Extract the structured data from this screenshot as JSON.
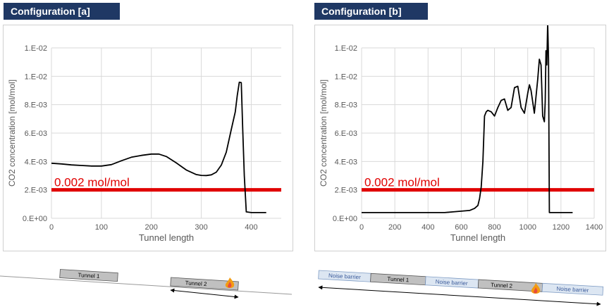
{
  "panels": [
    {
      "title": "Configuration [a]"
    },
    {
      "title": "Configuration [b]"
    }
  ],
  "colors": {
    "title_bg": "#1f3864",
    "threshold": "#e00000",
    "series": "#000000",
    "grid": "#d9d9d9",
    "tunnel_fill": "#c0c0c0",
    "noise_fill": "#dce6f2",
    "noise_text": "#3a5a9a"
  },
  "chart_data": [
    {
      "type": "line",
      "xlabel": "Tunnel length",
      "ylabel": "CO2 concentration [mol/mol]",
      "xlim": [
        0,
        460
      ],
      "xticks": [
        0,
        100,
        200,
        300,
        400
      ],
      "ylim": [
        0,
        0.012
      ],
      "yticks": [
        0,
        0.002,
        0.004,
        0.006,
        0.008,
        0.01,
        0.012
      ],
      "ytick_labels": [
        "0.E+00",
        "2.E-03",
        "4.E-03",
        "6.E-03",
        "8.E-03",
        "1.E-02",
        "1.E-02"
      ],
      "grid": true,
      "threshold": {
        "value": 0.002,
        "label": "0.002 mol/mol"
      },
      "series": [
        {
          "x": [
            0,
            20,
            40,
            60,
            80,
            100,
            120,
            140,
            160,
            180,
            200,
            215,
            230,
            250,
            270,
            290,
            300,
            310,
            320,
            330,
            340,
            350,
            360,
            368,
            372,
            376,
            380,
            383,
            386,
            390,
            400,
            410,
            420,
            430
          ],
          "y": [
            0.00388,
            0.00383,
            0.00376,
            0.00372,
            0.00368,
            0.00368,
            0.00378,
            0.00405,
            0.0043,
            0.00443,
            0.00452,
            0.00452,
            0.00435,
            0.0039,
            0.0034,
            0.00308,
            0.00302,
            0.00301,
            0.00306,
            0.00325,
            0.00375,
            0.00465,
            0.00625,
            0.0075,
            0.00865,
            0.00958,
            0.00955,
            0.0062,
            0.003,
            0.00045,
            0.0004,
            0.0004,
            0.0004,
            0.0004
          ]
        }
      ]
    },
    {
      "type": "line",
      "xlabel": "Tunnel length",
      "ylabel": "CO2 concentration [mol/mol]",
      "xlim": [
        0,
        1400
      ],
      "xticks": [
        0,
        200,
        400,
        600,
        800,
        1000,
        1200,
        1400
      ],
      "ylim": [
        0,
        0.012
      ],
      "yticks": [
        0,
        0.002,
        0.004,
        0.006,
        0.008,
        0.01,
        0.012
      ],
      "ytick_labels": [
        "0.E+00",
        "2.E-03",
        "4.E-03",
        "6.E-03",
        "8.E-03",
        "1.E-02",
        "1.E-02"
      ],
      "grid": true,
      "threshold": {
        "value": 0.002,
        "label": "0.002 mol/mol"
      },
      "series": [
        {
          "x": [
            0,
            100,
            200,
            300,
            400,
            500,
            550,
            600,
            650,
            680,
            700,
            710,
            720,
            730,
            740,
            750,
            760,
            780,
            800,
            820,
            840,
            860,
            880,
            900,
            920,
            940,
            960,
            980,
            1000,
            1010,
            1020,
            1040,
            1060,
            1070,
            1080,
            1090,
            1100,
            1105,
            1110,
            1115,
            1120,
            1125,
            1130,
            1140,
            1200,
            1270
          ],
          "y": [
            0.0004,
            0.0004,
            0.0004,
            0.0004,
            0.0004,
            0.0004,
            0.00045,
            0.0005,
            0.00055,
            0.0007,
            0.0009,
            0.0014,
            0.0022,
            0.004,
            0.0072,
            0.0075,
            0.0076,
            0.0075,
            0.0072,
            0.0078,
            0.0083,
            0.0084,
            0.0076,
            0.0078,
            0.0092,
            0.0093,
            0.0078,
            0.0074,
            0.0088,
            0.0094,
            0.009,
            0.0074,
            0.0098,
            0.0112,
            0.0108,
            0.0072,
            0.0068,
            0.0082,
            0.0118,
            0.0108,
            0.0138,
            0.0112,
            0.0004,
            0.0004,
            0.0004,
            0.0004
          ]
        }
      ]
    }
  ],
  "schematics": [
    {
      "tunnel1": "Tunnel 1",
      "tunnel2": "Tunnel 2"
    },
    {
      "noise1": "Noise barrier",
      "tunnel1": "Tunnel 1",
      "noise2": "Noise barrier",
      "tunnel2": "Tunnel 2",
      "noise3": "Noise barrier"
    }
  ]
}
